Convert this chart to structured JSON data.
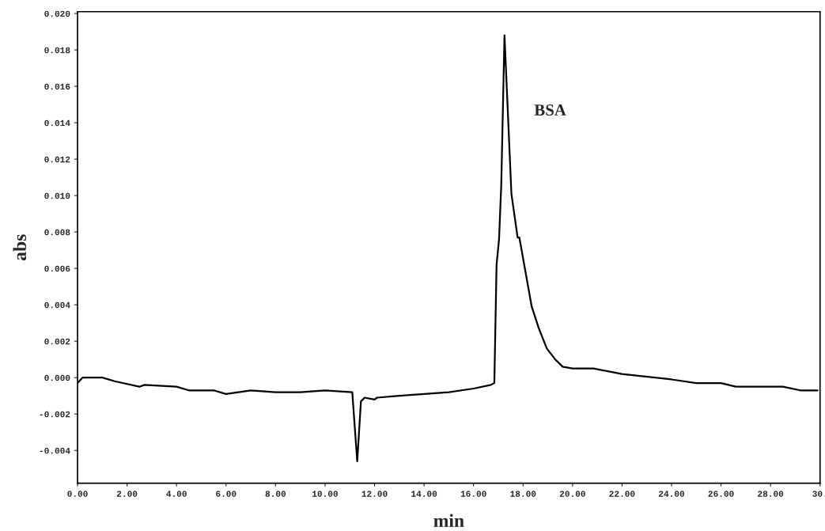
{
  "chart_data": {
    "type": "line",
    "xlabel": "min",
    "ylabel": "abs",
    "x": [
      0,
      0.2,
      1.0,
      1.5,
      2.5,
      2.7,
      4.0,
      4.5,
      5.5,
      6.0,
      7.0,
      8.0,
      9.0,
      10.0,
      11.1,
      11.3,
      11.45,
      11.6,
      12.0,
      12.1,
      13.0,
      14.0,
      15.0,
      16.0,
      16.7,
      16.84,
      16.93,
      17.03,
      17.12,
      17.25,
      17.53,
      17.78,
      17.85,
      18.1,
      18.35,
      18.64,
      18.96,
      19.3,
      19.6,
      20.0,
      20.85,
      22.0,
      24.0,
      25.0,
      26.0,
      26.6,
      28.5,
      29.2,
      29.9
    ],
    "series": [
      {
        "color": "#000000",
        "values": [
          -0.0003,
          0.0,
          0.0,
          -0.0002,
          -0.0005,
          -0.0004,
          -0.0005,
          -0.0007,
          -0.0007,
          -0.0009,
          -0.0007,
          -0.0008,
          -0.0008,
          -0.0007,
          -0.0008,
          -0.0046,
          -0.0013,
          -0.0011,
          -0.0012,
          -0.0011,
          -0.001,
          -0.0009,
          -0.0008,
          -0.0006,
          -0.0004,
          -0.0003,
          0.0062,
          0.0076,
          0.0106,
          0.0188,
          0.0101,
          0.0077,
          0.0077,
          0.0058,
          0.0039,
          0.0027,
          0.0016,
          0.001,
          0.0006,
          0.0005,
          0.0005,
          0.0002,
          -0.0001,
          -0.0003,
          -0.0003,
          -0.0005,
          -0.0005,
          -0.0007,
          -0.0007
        ]
      }
    ],
    "xlim": [
      0,
      30
    ],
    "ylim": [
      -0.0058,
      0.0201
    ],
    "xticks": [
      {
        "value": 0,
        "label": "0.00"
      },
      {
        "value": 2,
        "label": "2.00"
      },
      {
        "value": 4,
        "label": "4.00"
      },
      {
        "value": 6,
        "label": "6.00"
      },
      {
        "value": 8,
        "label": "8.00"
      },
      {
        "value": 10,
        "label": "10.00"
      },
      {
        "value": 12,
        "label": "12.00"
      },
      {
        "value": 14,
        "label": "14.00"
      },
      {
        "value": 16,
        "label": "16.00"
      },
      {
        "value": 18,
        "label": "18.00"
      },
      {
        "value": 20,
        "label": "20.00"
      },
      {
        "value": 22,
        "label": "22.00"
      },
      {
        "value": 24,
        "label": "24.00"
      },
      {
        "value": 26,
        "label": "26.00"
      },
      {
        "value": 28,
        "label": "28.00"
      },
      {
        "value": 30,
        "label": "30."
      }
    ],
    "yticks": [
      {
        "value": -0.004,
        "label": "-0.004"
      },
      {
        "value": -0.002,
        "label": "-0.002"
      },
      {
        "value": 0,
        "label": "0.000"
      },
      {
        "value": 0.002,
        "label": "0.002"
      },
      {
        "value": 0.004,
        "label": "0.004"
      },
      {
        "value": 0.006,
        "label": "0.006"
      },
      {
        "value": 0.008,
        "label": "0.008"
      },
      {
        "value": 0.01,
        "label": "0.010"
      },
      {
        "value": 0.012,
        "label": "0.012"
      },
      {
        "value": 0.014,
        "label": "0.014"
      },
      {
        "value": 0.016,
        "label": "0.016"
      },
      {
        "value": 0.018,
        "label": "0.018"
      },
      {
        "value": 0.02,
        "label": "0.020"
      }
    ],
    "annotations": [
      "BSA"
    ],
    "grid": false,
    "legend": false
  }
}
